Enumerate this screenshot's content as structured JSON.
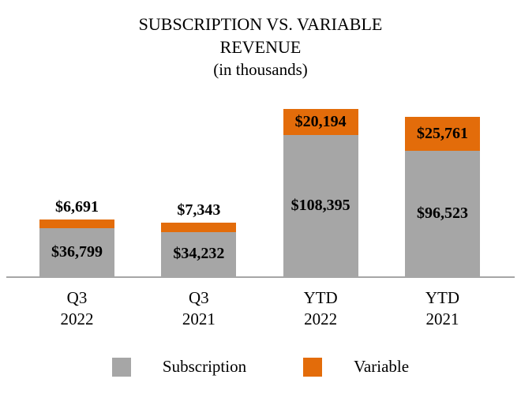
{
  "title": {
    "line1": "SUBSCRIPTION VS. VARIABLE",
    "line2": "REVENUE",
    "line3": "(in thousands)"
  },
  "chart_data": {
    "type": "bar",
    "stacked": true,
    "title": "SUBSCRIPTION VS. VARIABLE REVENUE (in thousands)",
    "categories": [
      "Q3 2022",
      "Q3 2021",
      "YTD 2022",
      "YTD 2021"
    ],
    "series": [
      {
        "name": "Subscription",
        "color": "#A6A6A6",
        "values": [
          36799,
          34232,
          108395,
          96523
        ]
      },
      {
        "name": "Variable",
        "color": "#E36C0A",
        "values": [
          6691,
          7343,
          20194,
          25761
        ]
      }
    ],
    "value_labels": {
      "Subscription": [
        "$36,799",
        "$34,232",
        "$108,395",
        "$96,523"
      ],
      "Variable": [
        "$6,691",
        "$7,343",
        "$20,194",
        "$25,761"
      ]
    },
    "variable_label_placement": [
      "above",
      "above",
      "inside",
      "inside"
    ],
    "legend_position": "bottom",
    "gridlines": false,
    "axis_line_color": "#A6A6A6",
    "xlabel": "",
    "ylabel": ""
  },
  "legend": {
    "items": [
      {
        "label": "Subscription",
        "color": "#A6A6A6"
      },
      {
        "label": "Variable",
        "color": "#E36C0A"
      }
    ]
  }
}
